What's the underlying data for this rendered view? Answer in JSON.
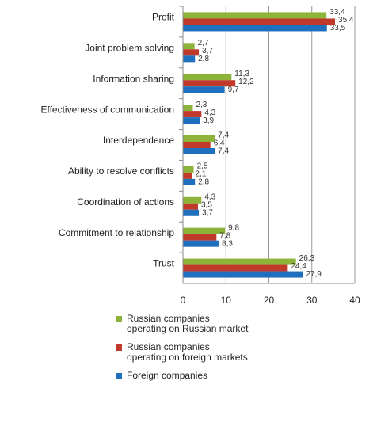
{
  "chart_data": {
    "type": "hbar",
    "categories": [
      "Profit",
      "Joint problem solving",
      "Information sharing",
      "Effectiveness of communication",
      "Interdependence",
      "Ability to resolve conflicts",
      "Coordination of actions",
      "Commitment to relationship",
      "Trust"
    ],
    "series": [
      {
        "name": "Russian companies operating on Russian market",
        "color": "#8db33a",
        "values": [
          33.4,
          2.7,
          11.3,
          2.3,
          7.4,
          2.5,
          4.3,
          9.8,
          26.3
        ],
        "value_labels": [
          "33,4",
          "2,7",
          "11,3",
          "2,3",
          "7,4",
          "2,5",
          "4,3",
          "9,8",
          "26,3"
        ]
      },
      {
        "name": "Russian companies operating on foreign markets",
        "color": "#c0392b",
        "values": [
          35.4,
          3.7,
          12.2,
          4.3,
          6.4,
          2.1,
          3.5,
          7.8,
          24.4
        ],
        "value_labels": [
          "35,4",
          "3,7",
          "12,2",
          "4,3",
          "6,4",
          "2,1",
          "3,5",
          "7,8",
          "24,4"
        ]
      },
      {
        "name": "Foreign companies",
        "color": "#1f6fbf",
        "values": [
          33.5,
          2.8,
          9.7,
          3.9,
          7.4,
          2.8,
          3.7,
          8.3,
          27.9
        ],
        "value_labels": [
          "33,5",
          "2,8",
          "9,7",
          "3,9",
          "7,4",
          "2,8",
          "3,7",
          "8,3",
          "27,9"
        ]
      }
    ],
    "xlim": [
      0,
      40
    ],
    "xticks": [
      0,
      10,
      20,
      30,
      40
    ],
    "grid": true
  }
}
